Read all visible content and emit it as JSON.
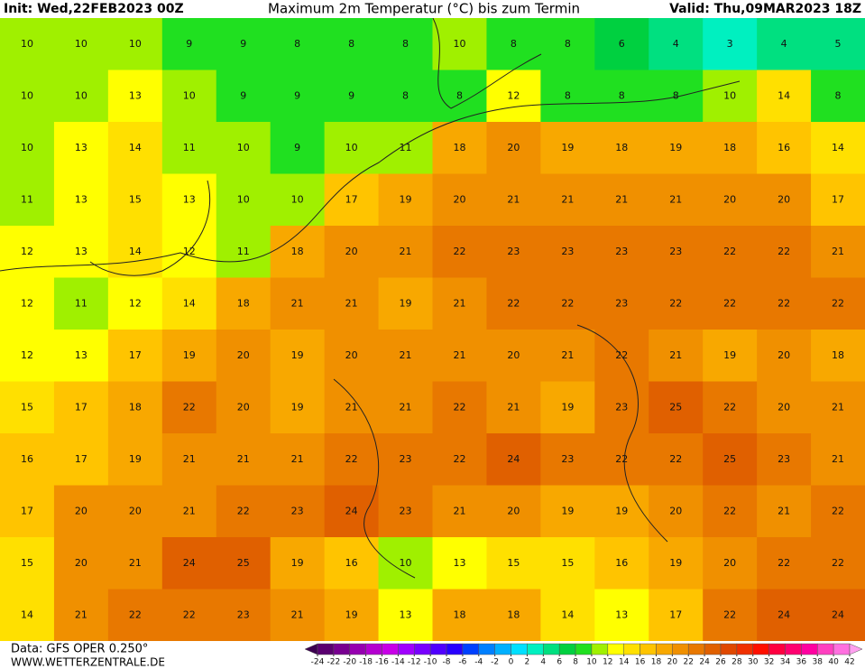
{
  "header": {
    "init": "Init: Wed,22FEB2023 00Z",
    "title": "Maximum 2m Temperatur (°C) bis zum Termin",
    "valid": "Valid: Thu,09MAR2023 18Z"
  },
  "field": {
    "values": [
      [
        10,
        10,
        10,
        9,
        9,
        8,
        8,
        8,
        10,
        8,
        8,
        6,
        4,
        3,
        4,
        5
      ],
      [
        10,
        10,
        13,
        10,
        9,
        9,
        9,
        8,
        8,
        12,
        8,
        8,
        8,
        10,
        14,
        8
      ],
      [
        10,
        13,
        14,
        11,
        10,
        9,
        10,
        11,
        18,
        20,
        19,
        18,
        19,
        18,
        16,
        14
      ],
      [
        11,
        13,
        15,
        13,
        10,
        10,
        17,
        19,
        20,
        21,
        21,
        21,
        21,
        20,
        20,
        17
      ],
      [
        12,
        13,
        14,
        12,
        11,
        18,
        20,
        21,
        22,
        23,
        23,
        23,
        23,
        22,
        22,
        21
      ],
      [
        12,
        11,
        12,
        14,
        18,
        21,
        21,
        19,
        21,
        22,
        22,
        23,
        22,
        22,
        22,
        22
      ],
      [
        12,
        13,
        17,
        19,
        20,
        19,
        20,
        21,
        21,
        20,
        21,
        22,
        21,
        19,
        20,
        18
      ],
      [
        15,
        17,
        18,
        22,
        20,
        19,
        21,
        21,
        22,
        21,
        19,
        23,
        25,
        22,
        20,
        21
      ],
      [
        16,
        17,
        19,
        21,
        21,
        21,
        22,
        23,
        22,
        24,
        23,
        22,
        22,
        25,
        23,
        21
      ],
      [
        17,
        20,
        20,
        21,
        22,
        23,
        24,
        23,
        21,
        20,
        19,
        19,
        20,
        22,
        21,
        22
      ],
      [
        15,
        20,
        21,
        24,
        25,
        19,
        16,
        10,
        13,
        15,
        15,
        16,
        19,
        20,
        22,
        22
      ],
      [
        14,
        21,
        22,
        22,
        23,
        21,
        19,
        13,
        18,
        18,
        14,
        13,
        17,
        22,
        24,
        24
      ]
    ]
  },
  "colorbar": {
    "levels": [
      -24,
      -22,
      -20,
      -18,
      -16,
      -14,
      -12,
      -10,
      -8,
      -6,
      -4,
      -2,
      0,
      2,
      4,
      6,
      8,
      10,
      12,
      14,
      16,
      18,
      20,
      22,
      24,
      26,
      28,
      30,
      32,
      34,
      36,
      38,
      40,
      42
    ],
    "colors": [
      "#3c0050",
      "#5a0070",
      "#780090",
      "#9600b0",
      "#b400d0",
      "#c800e8",
      "#a000ff",
      "#7800ff",
      "#5000ff",
      "#2800ff",
      "#0040ff",
      "#0080ff",
      "#00b0ff",
      "#00e0ff",
      "#00f0c0",
      "#00e080",
      "#00d040",
      "#20e020",
      "#a0f000",
      "#ffff00",
      "#ffe000",
      "#ffc400",
      "#f8a800",
      "#f09000",
      "#e87800",
      "#e06000",
      "#e04800",
      "#f03000",
      "#ff1000",
      "#ff0040",
      "#ff0070",
      "#ff00a0",
      "#ff40c0",
      "#ff70e0",
      "#ffa0f0"
    ]
  },
  "footer": {
    "data": "Data: GFS OPER 0.250°",
    "site": "WWW.WETTERZENTRALE.DE"
  }
}
